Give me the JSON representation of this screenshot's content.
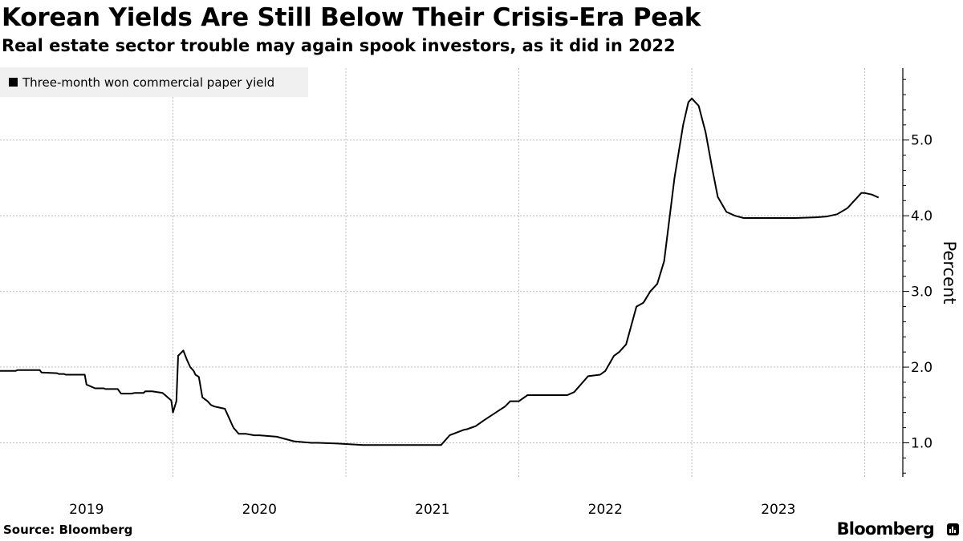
{
  "header": {
    "title": "Korean Yields Are Still Below Their Crisis-Era Peak",
    "subtitle": "Real estate sector trouble may again spook investors, as it did in 2022"
  },
  "legend": {
    "label": "Three-month won commercial paper yield"
  },
  "footer": {
    "source": "Source: Bloomberg",
    "brand": "Bloomberg"
  },
  "colors": {
    "line": "#000000",
    "grid": "#bdbdbd",
    "legend_bg": "#f0f0f0"
  },
  "chart_data": {
    "type": "line",
    "title": "Korean Yields Are Still Below Their Crisis-Era Peak",
    "subtitle": "Real estate sector trouble may again spook investors, as it did in 2022",
    "xlabel": "",
    "ylabel": "Percent",
    "ylim": [
      0.55,
      5.95
    ],
    "xlim": [
      2018.5,
      2023.72
    ],
    "yticks": [
      1.0,
      2.0,
      3.0,
      4.0,
      5.0
    ],
    "ytick_labels": [
      "1.0",
      "2.0",
      "3.0",
      "4.0",
      "5.0"
    ],
    "xtick_labels": [
      "2019",
      "2020",
      "2021",
      "2022",
      "2023"
    ],
    "xtick_label_pos": [
      2019.0,
      2020.0,
      2021.0,
      2022.0,
      2023.0
    ],
    "year_dividers": [
      2019.5,
      2020.5,
      2021.5,
      2022.5,
      2023.5
    ],
    "grid": true,
    "legend_position": "top-left",
    "series": [
      {
        "name": "Three-month won commercial paper yield",
        "step": true,
        "x": [
          2018.5,
          2018.59,
          2018.6,
          2018.73,
          2018.74,
          2018.83,
          2018.84,
          2018.87,
          2018.88,
          2018.99,
          2019.0,
          2019.05,
          2019.07,
          2019.1,
          2019.11,
          2019.18,
          2019.2,
          2019.26,
          2019.28,
          2019.33,
          2019.34,
          2019.38,
          2019.44,
          2019.49,
          2019.5,
          2019.52,
          2019.53,
          2019.56,
          2019.58,
          2019.6,
          2019.62,
          2019.63,
          2019.65,
          2019.67,
          2019.7,
          2019.72,
          2019.74,
          2019.76,
          2019.8,
          2019.82,
          2019.85,
          2019.88,
          2019.92,
          2019.97,
          2020.0,
          2020.1,
          2020.2,
          2020.3,
          2020.34,
          2020.45,
          2020.6,
          2020.65,
          2020.9,
          2020.96,
          2021.05,
          2021.1,
          2021.18,
          2021.2,
          2021.25,
          2021.3,
          2021.38,
          2021.42,
          2021.45,
          2021.5,
          2021.55,
          2021.62,
          2021.7,
          2021.78,
          2021.82,
          2021.9,
          2021.97,
          2022.0,
          2022.05,
          2022.08,
          2022.12,
          2022.18,
          2022.22,
          2022.26,
          2022.3,
          2022.34,
          2022.4,
          2022.45,
          2022.48,
          2022.5,
          2022.54,
          2022.58,
          2022.62,
          2022.65,
          2022.7,
          2022.75,
          2022.8,
          2022.9,
          2023.1,
          2023.22,
          2023.28,
          2023.3,
          2023.34,
          2023.4,
          2023.48,
          2023.5,
          2023.54,
          2023.58
        ],
        "values": [
          1.95,
          1.95,
          1.96,
          1.96,
          1.93,
          1.92,
          1.91,
          1.91,
          1.9,
          1.9,
          1.77,
          1.72,
          1.72,
          1.72,
          1.71,
          1.71,
          1.65,
          1.65,
          1.66,
          1.66,
          1.68,
          1.68,
          1.66,
          1.56,
          1.4,
          1.55,
          2.15,
          2.22,
          2.1,
          2.0,
          1.95,
          1.9,
          1.87,
          1.6,
          1.55,
          1.5,
          1.48,
          1.47,
          1.45,
          1.35,
          1.2,
          1.12,
          1.12,
          1.1,
          1.1,
          1.08,
          1.02,
          1.0,
          1.0,
          0.99,
          0.97,
          0.97,
          0.97,
          0.97,
          0.97,
          1.1,
          1.17,
          1.18,
          1.22,
          1.3,
          1.42,
          1.48,
          1.55,
          1.55,
          1.63,
          1.63,
          1.63,
          1.63,
          1.67,
          1.88,
          1.9,
          1.95,
          2.15,
          2.2,
          2.3,
          2.8,
          2.85,
          3.0,
          3.1,
          3.4,
          4.5,
          5.2,
          5.5,
          5.55,
          5.45,
          5.1,
          4.6,
          4.25,
          4.05,
          4.0,
          3.97,
          3.97,
          3.97,
          3.98,
          3.99,
          4.0,
          4.02,
          4.1,
          4.3,
          4.3,
          4.28,
          4.24
        ]
      }
    ]
  }
}
